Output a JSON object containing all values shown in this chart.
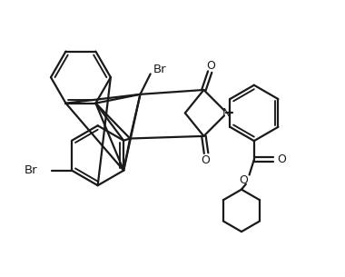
{
  "bg_color": "#ffffff",
  "line_color": "#1a1a1a",
  "line_width": 1.6,
  "figsize": [
    3.8,
    3.05
  ],
  "dpi": 100,
  "xlim": [
    0,
    10
  ],
  "ylim": [
    0,
    8
  ]
}
